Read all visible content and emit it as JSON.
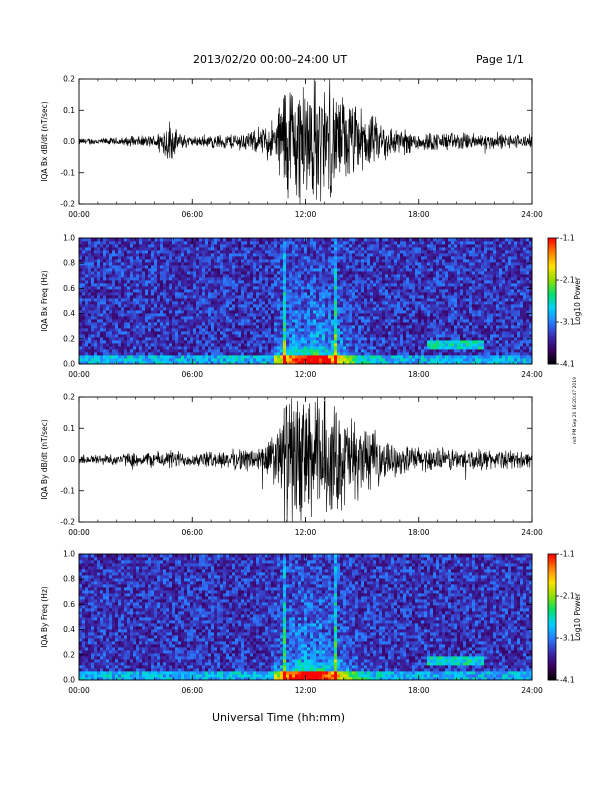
{
  "header": {
    "date_range": "2013/02/20  00:00–24:00 UT",
    "page": "Page 1/1"
  },
  "footer": {
    "xlabel": "Universal Time (hh:mm)"
  },
  "side_note": "mit PM Sep 20 16:20:47 2019",
  "colors": {
    "trace": "#000000",
    "colorbar_stops": [
      "#000000",
      "#3a0060",
      "#3b2bb0",
      "#2a7cff",
      "#00d0ff",
      "#00e070",
      "#8fe000",
      "#ffe000",
      "#ff8000",
      "#ff0000"
    ]
  },
  "chart_data": [
    {
      "type": "line",
      "ylabel": "IQA Bx dB/dt (nT/sec)",
      "xlim": [
        0,
        24
      ],
      "ylim": [
        -0.2,
        0.2
      ],
      "xticks": [
        "00:00",
        "06:00",
        "12:00",
        "18:00",
        "24:00"
      ],
      "yticks": [
        "-0.2",
        "-0.1",
        "0.0",
        "0.1",
        "0.2"
      ],
      "series": [
        {
          "x": [
            0,
            2,
            4,
            4.8,
            5.2,
            6,
            8,
            9.5,
            10.5,
            10.8,
            11.5,
            12.5,
            13.5,
            14.5,
            15.5,
            16.5,
            18,
            20,
            22,
            24
          ],
          "amplitude": [
            0.01,
            0.012,
            0.02,
            0.07,
            0.03,
            0.015,
            0.025,
            0.035,
            0.08,
            0.2,
            0.2,
            0.2,
            0.16,
            0.12,
            0.08,
            0.05,
            0.03,
            0.028,
            0.025,
            0.02
          ]
        }
      ]
    },
    {
      "type": "heatmap",
      "ylabel": "IQA Bx Freq (Hz)",
      "colorbar_label": "Log10 Power",
      "colorbar_ticks": [
        "-1.1",
        "-2.1",
        "-3.1",
        "-4.1"
      ],
      "zlim": [
        -4.1,
        -1.1
      ],
      "xlim": [
        0,
        24
      ],
      "ylim": [
        0,
        1.0
      ],
      "xticks": [
        "00:00",
        "06:00",
        "12:00",
        "18:00",
        "24:00"
      ],
      "yticks": [
        "0.0",
        "0.2",
        "0.4",
        "0.6",
        "0.8",
        "1.0"
      ]
    },
    {
      "type": "line",
      "ylabel": "IQA By dB/dt (nT/sec)",
      "xlim": [
        0,
        24
      ],
      "ylim": [
        -0.2,
        0.2
      ],
      "xticks": [
        "00:00",
        "06:00",
        "12:00",
        "18:00",
        "24:00"
      ],
      "yticks": [
        "-0.2",
        "-0.1",
        "0.0",
        "0.1",
        "0.2"
      ],
      "series": [
        {
          "x": [
            0,
            2,
            4,
            5,
            6,
            8,
            9.5,
            10.5,
            10.8,
            11.5,
            12.5,
            13.5,
            14.5,
            15.5,
            16.5,
            18,
            20,
            22,
            24
          ],
          "amplitude": [
            0.015,
            0.018,
            0.025,
            0.03,
            0.02,
            0.03,
            0.04,
            0.09,
            0.2,
            0.2,
            0.2,
            0.17,
            0.13,
            0.09,
            0.05,
            0.04,
            0.035,
            0.03,
            0.025
          ]
        }
      ]
    },
    {
      "type": "heatmap",
      "ylabel": "IQA By Freq (Hz)",
      "colorbar_label": "Log10 Power",
      "colorbar_ticks": [
        "-1.1",
        "-2.1",
        "-3.1",
        "-4.1"
      ],
      "zlim": [
        -4.1,
        -1.1
      ],
      "xlim": [
        0,
        24
      ],
      "ylim": [
        0,
        1.0
      ],
      "xticks": [
        "00:00",
        "06:00",
        "12:00",
        "18:00",
        "24:00"
      ],
      "yticks": [
        "0.0",
        "0.2",
        "0.4",
        "0.6",
        "0.8",
        "1.0"
      ]
    }
  ]
}
